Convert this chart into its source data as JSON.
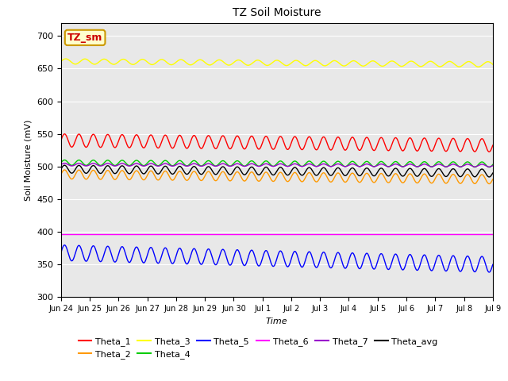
{
  "title": "TZ Soil Moisture",
  "xlabel": "Time",
  "ylabel": "Soil Moisture (mV)",
  "ylim": [
    300,
    720
  ],
  "yticks": [
    300,
    350,
    400,
    450,
    500,
    550,
    600,
    650,
    700
  ],
  "x_labels": [
    "Jun 24",
    "Jun 25",
    "Jun 26",
    "Jun 27",
    "Jun 28",
    "Jun 29",
    "Jun 30",
    "Jul 1",
    "Jul 2",
    "Jul 3",
    "Jul 4",
    "Jul 5",
    "Jul 6",
    "Jul 7",
    "Jul 8",
    "Jul 9"
  ],
  "bg_color": "#e8e8e8",
  "annotation_text": "TZ_sm",
  "annotation_bg": "#ffffcc",
  "annotation_border": "#cc9900",
  "annotation_text_color": "#cc0000",
  "series": [
    {
      "name": "Theta_1",
      "color": "#ff0000",
      "base": 540,
      "amp": 10,
      "freq": 2.0,
      "trend": -0.5
    },
    {
      "name": "Theta_2",
      "color": "#ff9900",
      "base": 488,
      "amp": 7,
      "freq": 2.0,
      "trend": -0.5
    },
    {
      "name": "Theta_3",
      "color": "#ffff00",
      "base": 661,
      "amp": 4,
      "freq": 1.5,
      "trend": -0.3
    },
    {
      "name": "Theta_4",
      "color": "#00cc00",
      "base": 506,
      "amp": 4,
      "freq": 2.0,
      "trend": -0.2
    },
    {
      "name": "Theta_5",
      "color": "#0000ff",
      "base": 368,
      "amp": 12,
      "freq": 2.0,
      "trend": -1.2
    },
    {
      "name": "Theta_6",
      "color": "#ff00ff",
      "base": 397,
      "amp": 0,
      "freq": 0.0,
      "trend": 0.0
    },
    {
      "name": "Theta_7",
      "color": "#9900cc",
      "base": 503,
      "amp": 2,
      "freq": 2.0,
      "trend": -0.1
    },
    {
      "name": "Theta_avg",
      "color": "#000000",
      "base": 496,
      "amp": 6,
      "freq": 2.0,
      "trend": -0.4
    }
  ],
  "legend_row1": [
    "Theta_1",
    "Theta_2",
    "Theta_3",
    "Theta_4",
    "Theta_5",
    "Theta_6"
  ],
  "legend_row2": [
    "Theta_7",
    "Theta_avg"
  ]
}
